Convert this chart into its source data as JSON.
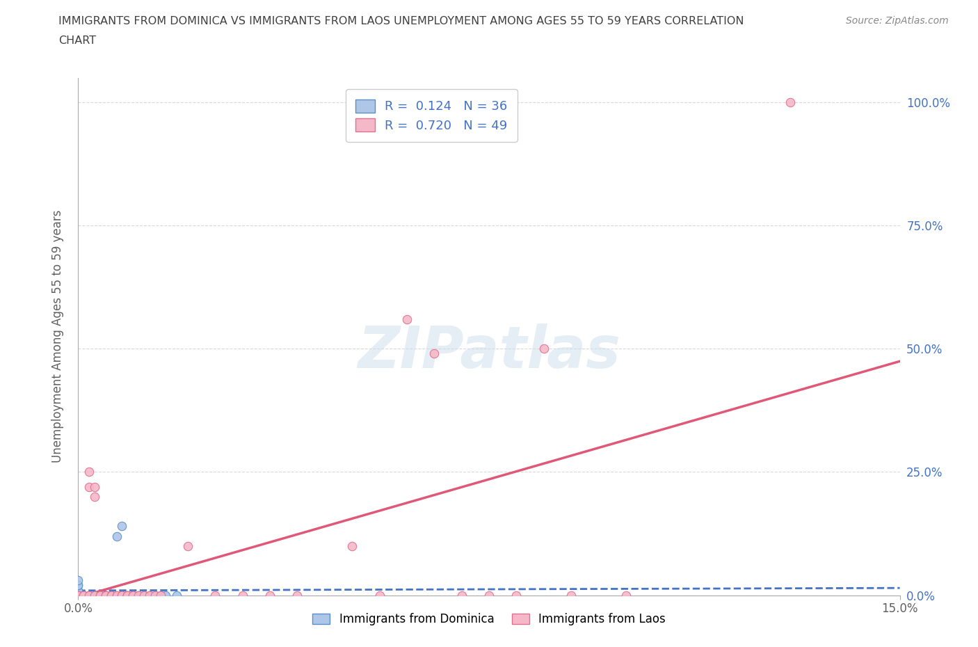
{
  "title_line1": "IMMIGRANTS FROM DOMINICA VS IMMIGRANTS FROM LAOS UNEMPLOYMENT AMONG AGES 55 TO 59 YEARS CORRELATION",
  "title_line2": "CHART",
  "source": "Source: ZipAtlas.com",
  "ylabel": "Unemployment Among Ages 55 to 59 years",
  "watermark": "ZIPatlas",
  "dominica_R": 0.124,
  "dominica_N": 36,
  "laos_R": 0.72,
  "laos_N": 49,
  "dominica_color": "#aec6e8",
  "dominica_edge_color": "#5b8fc9",
  "dominica_line_color": "#4472c4",
  "laos_color": "#f5b8c8",
  "laos_edge_color": "#e07090",
  "laos_line_color": "#e05878",
  "xlim": [
    0.0,
    0.15
  ],
  "ylim": [
    0.0,
    1.05
  ],
  "xtick_positions": [
    0.0,
    0.15
  ],
  "xticklabels": [
    "0.0%",
    "15.0%"
  ],
  "ytick_positions": [
    0.0,
    0.25,
    0.5,
    0.75,
    1.0
  ],
  "yticklabels_right": [
    "0.0%",
    "25.0%",
    "50.0%",
    "75.0%",
    "100.0%"
  ],
  "dominica_x": [
    0.0,
    0.0,
    0.0,
    0.0,
    0.0,
    0.0,
    0.0,
    0.0,
    0.0,
    0.0,
    0.001,
    0.001,
    0.002,
    0.002,
    0.003,
    0.003,
    0.004,
    0.004,
    0.005,
    0.005,
    0.005,
    0.006,
    0.006,
    0.007,
    0.008,
    0.008,
    0.009,
    0.01,
    0.01,
    0.011,
    0.012,
    0.013,
    0.014,
    0.015,
    0.016,
    0.018
  ],
  "dominica_y": [
    0.0,
    0.0,
    0.0,
    0.0,
    0.0,
    0.01,
    0.01,
    0.02,
    0.02,
    0.03,
    0.0,
    0.0,
    0.0,
    0.0,
    0.0,
    0.0,
    0.0,
    0.0,
    0.0,
    0.0,
    0.0,
    0.0,
    0.0,
    0.12,
    0.0,
    0.14,
    0.0,
    0.0,
    0.0,
    0.0,
    0.0,
    0.0,
    0.0,
    0.0,
    0.0,
    0.0
  ],
  "laos_x": [
    0.0,
    0.0,
    0.0,
    0.0,
    0.001,
    0.001,
    0.002,
    0.002,
    0.002,
    0.003,
    0.003,
    0.003,
    0.004,
    0.004,
    0.005,
    0.005,
    0.005,
    0.006,
    0.006,
    0.007,
    0.007,
    0.008,
    0.008,
    0.009,
    0.009,
    0.009,
    0.01,
    0.01,
    0.011,
    0.012,
    0.013,
    0.014,
    0.015,
    0.02,
    0.025,
    0.03,
    0.035,
    0.04,
    0.05,
    0.055,
    0.06,
    0.065,
    0.07,
    0.075,
    0.08,
    0.085,
    0.09,
    0.1,
    0.13
  ],
  "laos_y": [
    0.0,
    0.0,
    0.0,
    0.0,
    0.0,
    0.0,
    0.0,
    0.22,
    0.25,
    0.2,
    0.22,
    0.0,
    0.0,
    0.0,
    0.0,
    0.0,
    0.0,
    0.0,
    0.0,
    0.0,
    0.0,
    0.0,
    0.0,
    0.0,
    0.0,
    0.0,
    0.0,
    0.0,
    0.0,
    0.0,
    0.0,
    0.0,
    0.0,
    0.1,
    0.0,
    0.0,
    0.0,
    0.0,
    0.1,
    0.0,
    0.56,
    0.49,
    0.0,
    0.0,
    0.0,
    0.5,
    0.0,
    0.0,
    1.0
  ],
  "background_color": "#ffffff",
  "grid_color": "#d0d0d0",
  "title_color": "#404040",
  "source_color": "#888888",
  "tick_color": "#606060"
}
